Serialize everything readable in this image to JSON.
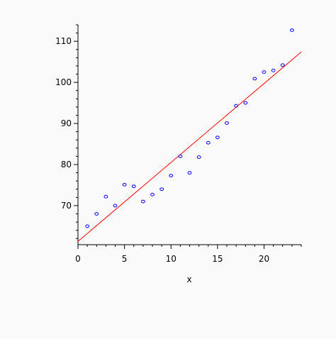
{
  "chart_data": {
    "type": "scatter",
    "title": "",
    "xlabel": "x",
    "ylabel": "",
    "xlim": [
      0,
      24
    ],
    "ylim": [
      60.5,
      114
    ],
    "x_ticks": [
      0,
      5,
      10,
      15,
      20
    ],
    "y_ticks": [
      70,
      80,
      90,
      100,
      110
    ],
    "grid": false,
    "legend": "none",
    "series": [
      {
        "type": "scatter",
        "color": "#0000ff",
        "points": [
          [
            1,
            65
          ],
          [
            2,
            68
          ],
          [
            3,
            72.2
          ],
          [
            4,
            70
          ],
          [
            5,
            75.1
          ],
          [
            6,
            74.7
          ],
          [
            7,
            71
          ],
          [
            8,
            72.7
          ],
          [
            9,
            74
          ],
          [
            10,
            77.3
          ],
          [
            11,
            82
          ],
          [
            12,
            78
          ],
          [
            13,
            81.8
          ],
          [
            14,
            85.3
          ],
          [
            15,
            86.6
          ],
          [
            16,
            90.1
          ],
          [
            17,
            94.3
          ],
          [
            18,
            95
          ],
          [
            19,
            100.9
          ],
          [
            20,
            102.5
          ],
          [
            21,
            102.9
          ],
          [
            22,
            104.2
          ],
          [
            23,
            112.7
          ]
        ]
      },
      {
        "type": "line",
        "color": "#ff0000",
        "points": [
          [
            0,
            61.3
          ],
          [
            24,
            107.4
          ]
        ]
      }
    ]
  }
}
